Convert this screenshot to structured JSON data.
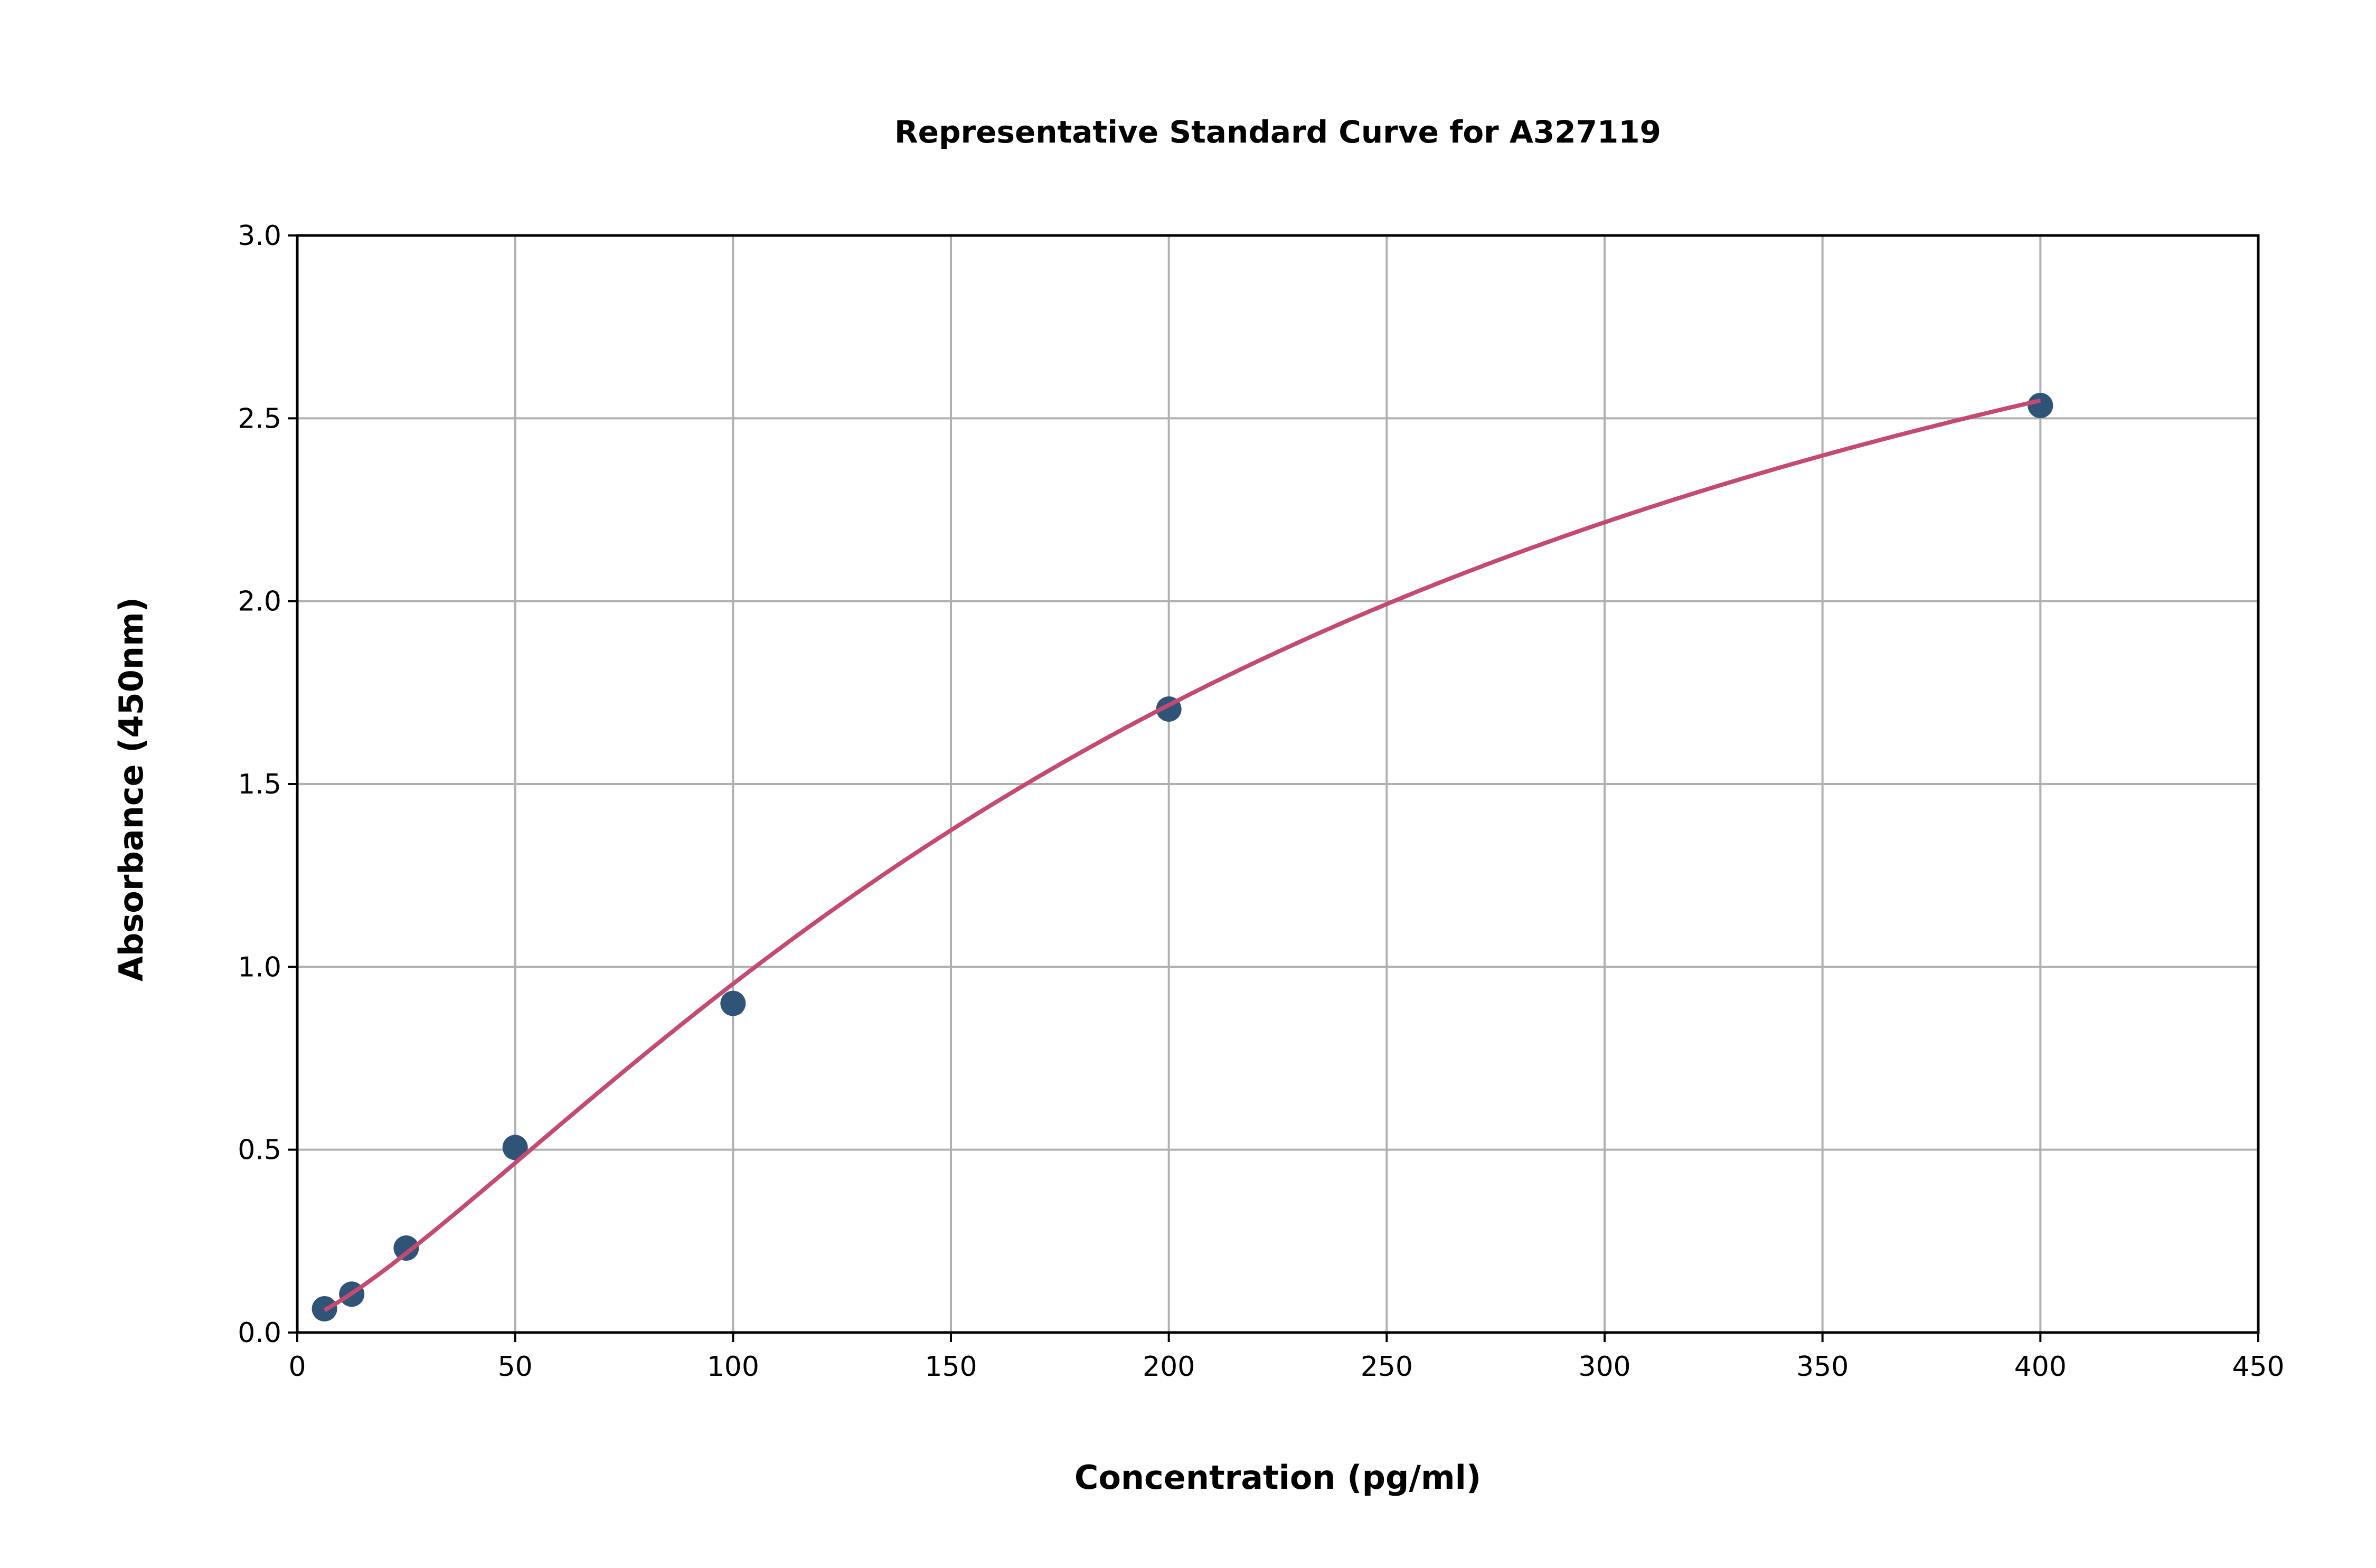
{
  "chart_data": {
    "type": "scatter",
    "title": "Representative Standard Curve for A327119",
    "xlabel": "Concentration (pg/ml)",
    "ylabel": "Absorbance (450nm)",
    "xlim": [
      0,
      450
    ],
    "ylim": [
      0,
      3.0
    ],
    "xticks": [
      "0",
      "50",
      "100",
      "150",
      "200",
      "250",
      "300",
      "350",
      "400",
      "450"
    ],
    "yticks": [
      "0.0",
      "0.5",
      "1.0",
      "1.5",
      "2.0",
      "2.5",
      "3.0"
    ],
    "grid": true,
    "points": {
      "x": [
        6.25,
        12.5,
        25,
        50,
        100,
        200,
        400
      ],
      "y": [
        0.065,
        0.105,
        0.231,
        0.506,
        0.9,
        1.705,
        2.535
      ],
      "color": "#2f5478"
    },
    "fit_curve": {
      "model": "4PL",
      "x_range": [
        6.25,
        400
      ],
      "color": "#c44a70"
    }
  }
}
